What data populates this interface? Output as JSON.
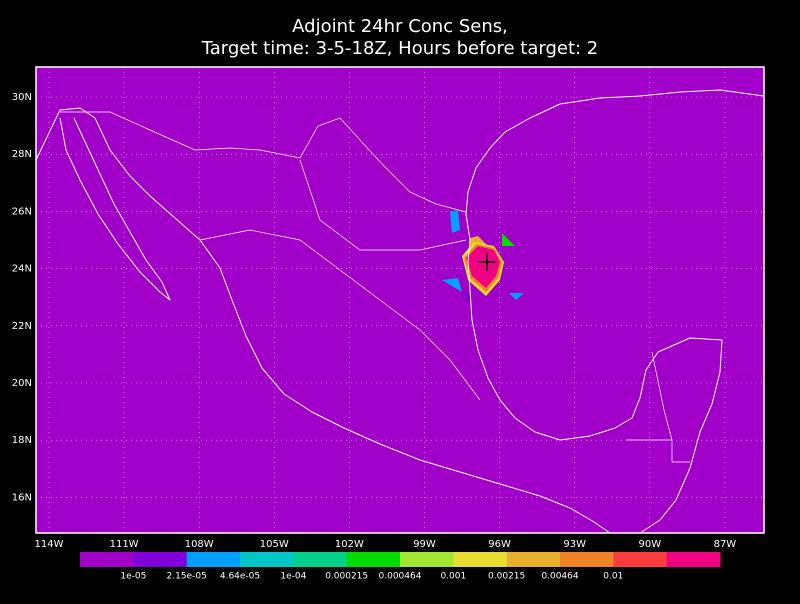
{
  "title": [
    "Adjoint 24hr Conc Sens,",
    "Target time: 3-5-18Z, Hours before target: 2"
  ],
  "map": {
    "background": "#a000c8",
    "lat_labels": [
      "30N",
      "28N",
      "26N",
      "24N",
      "22N",
      "20N",
      "18N",
      "16N"
    ],
    "lon_labels": [
      "114W",
      "111W",
      "108W",
      "105W",
      "102W",
      "99W",
      "96W",
      "93W",
      "90W",
      "87W"
    ]
  },
  "colorbar": {
    "colors": [
      "#a000c8",
      "#8200dc",
      "#00a0ff",
      "#00c8c8",
      "#00d28c",
      "#00dc00",
      "#a0e632",
      "#e6dc32",
      "#e6af2d",
      "#f08228",
      "#fa3c3c",
      "#f00082"
    ],
    "labels": [
      "1e-05",
      "2.15e-05",
      "4.64e-05",
      "1e-04",
      "0.000215",
      "0.000464",
      "0.001",
      "0.00215",
      "0.00464",
      "0.01"
    ]
  }
}
